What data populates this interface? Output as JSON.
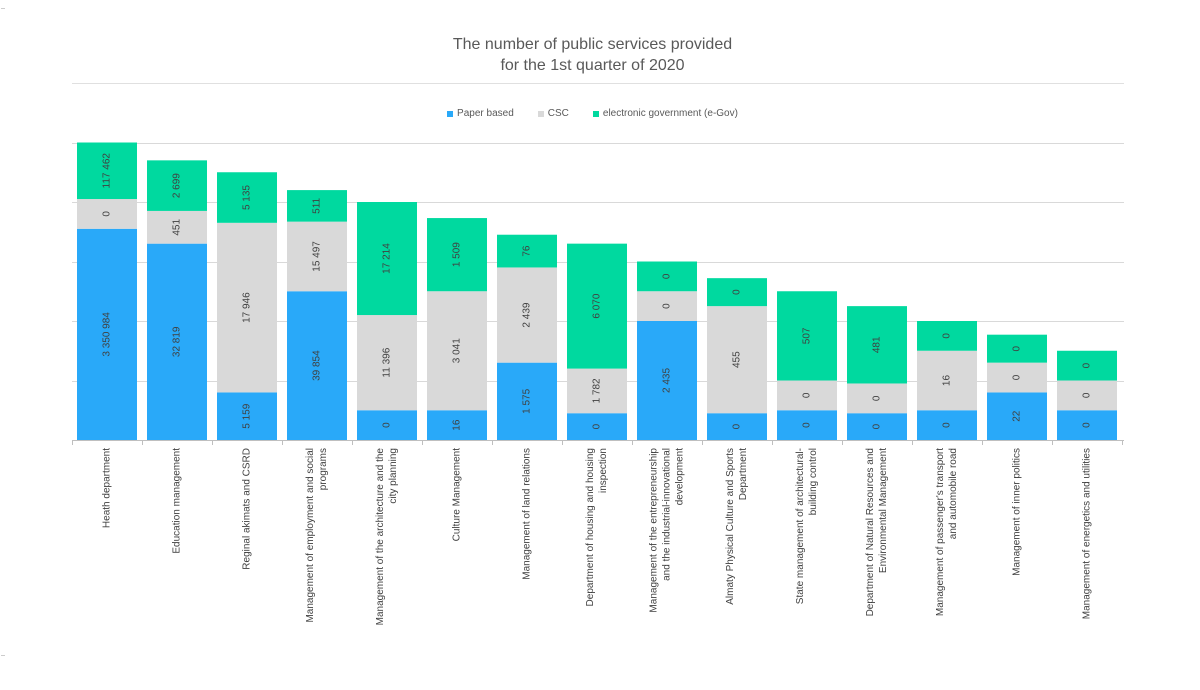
{
  "colors": {
    "paper": "#29a9f9",
    "csc": "#d9d9d9",
    "egov": "#00d99f",
    "grid": "#d9d9d9",
    "axis": "#bfbfbf",
    "text": "#404040"
  },
  "chart_data": {
    "type": "bar",
    "stacked": true,
    "title": [
      "The number of public services provided",
      "for the 1st quarter of 2020"
    ],
    "legend_position": "top",
    "grid": true,
    "series": [
      {
        "name": "Paper based",
        "key": "paper",
        "labels": [
          "3 350 984",
          "32 819",
          "5 159",
          "39 854",
          "0",
          "16",
          "1 575",
          "0",
          "2 435",
          "0",
          "0",
          "0",
          "0",
          "22",
          "0"
        ]
      },
      {
        "name": "CSC",
        "key": "csc",
        "labels": [
          "0",
          "451",
          "17 946",
          "15 497",
          "11 396",
          "3 041",
          "2 439",
          "1 782",
          "0",
          "455",
          "0",
          "0",
          "16",
          "0",
          "0"
        ]
      },
      {
        "name": "electronic government (e-Gov)",
        "key": "egov",
        "labels": [
          "117 462",
          "2 699",
          "5 135",
          "511",
          "17 214",
          "1 509",
          "76",
          "6 070",
          "0",
          "0",
          "507",
          "481",
          "0",
          "0",
          "0"
        ]
      }
    ],
    "categories": [
      [
        "Heath department"
      ],
      [
        "Education management"
      ],
      [
        "Reginal akimats and CSRD"
      ],
      [
        "Management of employment and social",
        "programs"
      ],
      [
        "Management of the architecture and the",
        "city planning"
      ],
      [
        "Culture Management"
      ],
      [
        "Management of land relations"
      ],
      [
        "Department of housing and housing",
        "inspection"
      ],
      [
        "Management of the entrepreneurship",
        "and the industrial-innovational",
        "development"
      ],
      [
        "Almaty Physical Culture and Sports",
        "Department"
      ],
      [
        "State management of architectural-",
        "building control"
      ],
      [
        "Department of Natural Resources and",
        "Environmental Management"
      ],
      [
        "Management of passenger's transport",
        "and automobile road"
      ],
      [
        "Management of inner politics"
      ],
      [
        "Management of energetics and utilities"
      ]
    ],
    "segment_heights": {
      "note": "apparent segment sizes in gridline units (1 unit = one gridline gap)",
      "paper": [
        3.55,
        3.3,
        0.8,
        2.5,
        0.5,
        0.5,
        1.3,
        0.45,
        2.0,
        0.45,
        0.5,
        0.45,
        0.5,
        0.8,
        0.5
      ],
      "csc": [
        0.5,
        0.55,
        2.85,
        1.17,
        1.6,
        2.0,
        1.6,
        0.75,
        0.5,
        1.8,
        0.5,
        0.5,
        1.0,
        0.5,
        0.5
      ],
      "egov": [
        0.95,
        0.85,
        0.85,
        0.53,
        1.9,
        1.23,
        0.55,
        2.1,
        0.5,
        0.47,
        1.5,
        1.3,
        0.5,
        0.47,
        0.5
      ]
    }
  }
}
